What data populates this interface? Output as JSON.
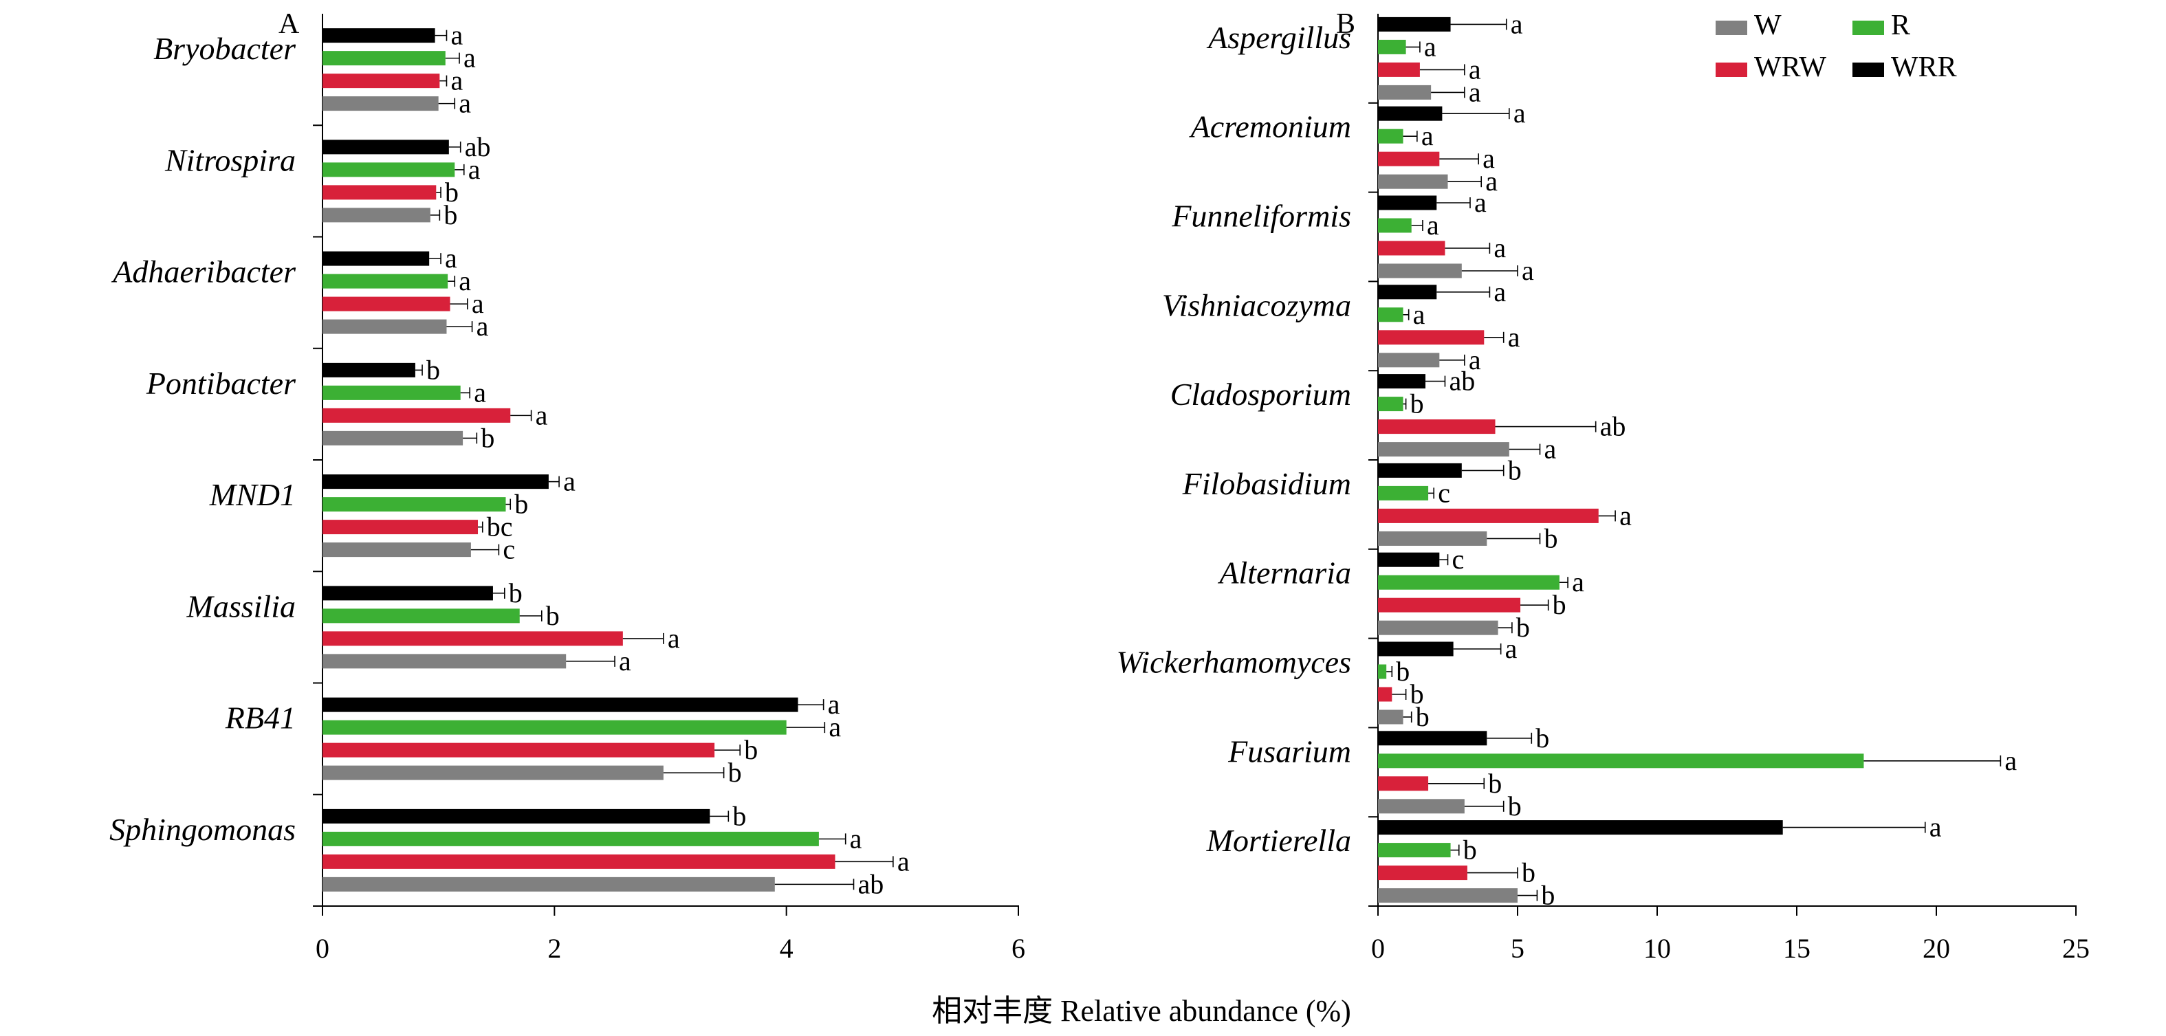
{
  "chart_data": {
    "type": "bar",
    "orientation": "horizontal",
    "xlabel": "相对丰度 Relative abundance (%)",
    "legend": {
      "placement": "top-right",
      "entries": [
        {
          "key": "W",
          "label": "W",
          "color": "#808080"
        },
        {
          "key": "R",
          "label": "R",
          "color": "#3cb034"
        },
        {
          "key": "WRW",
          "label": "WRW",
          "color": "#d8213a"
        },
        {
          "key": "WRR",
          "label": "WRR",
          "color": "#000000"
        }
      ]
    },
    "series_order": [
      "WRR",
      "R",
      "WRW",
      "W"
    ],
    "colors": {
      "W": "#808080",
      "R": "#3cb034",
      "WRW": "#d8213a",
      "WRR": "#000000"
    },
    "panels": [
      {
        "id": "A",
        "label": "A",
        "xlim": [
          0,
          6
        ],
        "xticks": [
          0,
          2,
          4,
          6
        ],
        "grid": false,
        "categories": [
          {
            "name": "Bryobacter",
            "values": {
              "WRR": 0.97,
              "R": 1.06,
              "WRW": 1.01,
              "W": 1.0
            },
            "errors": {
              "WRR": 0.1,
              "R": 0.12,
              "WRW": 0.06,
              "W": 0.14
            },
            "sig": {
              "WRR": "a",
              "R": "a",
              "WRW": "a",
              "W": "a"
            }
          },
          {
            "name": "Nitrospira",
            "values": {
              "WRR": 1.09,
              "R": 1.14,
              "WRW": 0.98,
              "W": 0.93
            },
            "errors": {
              "WRR": 0.1,
              "R": 0.08,
              "WRW": 0.04,
              "W": 0.08
            },
            "sig": {
              "WRR": "ab",
              "R": "a",
              "WRW": "b",
              "W": "b"
            }
          },
          {
            "name": "Adhaeribacter",
            "values": {
              "WRR": 0.92,
              "R": 1.08,
              "WRW": 1.1,
              "W": 1.07
            },
            "errors": {
              "WRR": 0.1,
              "R": 0.06,
              "WRW": 0.15,
              "W": 0.22
            },
            "sig": {
              "WRR": "a",
              "R": "a",
              "WRW": "a",
              "W": "a"
            }
          },
          {
            "name": "Pontibacter",
            "values": {
              "WRR": 0.8,
              "R": 1.19,
              "WRW": 1.62,
              "W": 1.21
            },
            "errors": {
              "WRR": 0.06,
              "R": 0.08,
              "WRW": 0.18,
              "W": 0.12
            },
            "sig": {
              "WRR": "b",
              "R": "a",
              "WRW": "a",
              "W": "b"
            }
          },
          {
            "name": "MND1",
            "values": {
              "WRR": 1.95,
              "R": 1.58,
              "WRW": 1.34,
              "W": 1.28
            },
            "errors": {
              "WRR": 0.09,
              "R": 0.04,
              "WRW": 0.04,
              "W": 0.24
            },
            "sig": {
              "WRR": "a",
              "R": "b",
              "WRW": "bc",
              "W": "c"
            }
          },
          {
            "name": "Massilia",
            "values": {
              "WRR": 1.47,
              "R": 1.7,
              "WRW": 2.59,
              "W": 2.1
            },
            "errors": {
              "WRR": 0.1,
              "R": 0.19,
              "WRW": 0.35,
              "W": 0.42
            },
            "sig": {
              "WRR": "b",
              "R": "b",
              "WRW": "a",
              "W": "a"
            }
          },
          {
            "name": "RB41",
            "values": {
              "WRR": 4.1,
              "R": 4.0,
              "WRW": 3.38,
              "W": 2.94
            },
            "errors": {
              "WRR": 0.22,
              "R": 0.33,
              "WRW": 0.22,
              "W": 0.52
            },
            "sig": {
              "WRR": "a",
              "R": "a",
              "WRW": "b",
              "W": "b"
            }
          },
          {
            "name": "Sphingomonas",
            "values": {
              "WRR": 3.34,
              "R": 4.28,
              "WRW": 4.42,
              "W": 3.9
            },
            "errors": {
              "WRR": 0.16,
              "R": 0.23,
              "WRW": 0.5,
              "W": 0.68
            },
            "sig": {
              "WRR": "b",
              "R": "a",
              "WRW": "a",
              "W": "ab"
            }
          }
        ]
      },
      {
        "id": "B",
        "label": "B",
        "xlim": [
          0,
          25
        ],
        "xticks": [
          0,
          5,
          10,
          15,
          20,
          25
        ],
        "grid": false,
        "categories": [
          {
            "name": "Aspergillus",
            "values": {
              "WRR": 2.6,
              "R": 1.0,
              "WRW": 1.5,
              "W": 1.9
            },
            "errors": {
              "WRR": 2.0,
              "R": 0.5,
              "WRW": 1.6,
              "W": 1.2
            },
            "sig": {
              "WRR": "a",
              "R": "a",
              "WRW": "a",
              "W": "a"
            }
          },
          {
            "name": "Acremonium",
            "values": {
              "WRR": 2.3,
              "R": 0.9,
              "WRW": 2.2,
              "W": 2.5
            },
            "errors": {
              "WRR": 2.4,
              "R": 0.5,
              "WRW": 1.4,
              "W": 1.2
            },
            "sig": {
              "WRR": "a",
              "R": "a",
              "WRW": "a",
              "W": "a"
            }
          },
          {
            "name": "Funneliformis",
            "values": {
              "WRR": 2.1,
              "R": 1.2,
              "WRW": 2.4,
              "W": 3.0
            },
            "errors": {
              "WRR": 1.2,
              "R": 0.4,
              "WRW": 1.6,
              "W": 2.0
            },
            "sig": {
              "WRR": "a",
              "R": "a",
              "WRW": "a",
              "W": "a"
            }
          },
          {
            "name": "Vishniacozyma",
            "values": {
              "WRR": 2.1,
              "R": 0.9,
              "WRW": 3.8,
              "W": 2.2
            },
            "errors": {
              "WRR": 1.9,
              "R": 0.2,
              "WRW": 0.7,
              "W": 0.9
            },
            "sig": {
              "WRR": "a",
              "R": "a",
              "WRW": "a",
              "W": "a"
            }
          },
          {
            "name": "Cladosporium",
            "values": {
              "WRR": 1.7,
              "R": 0.9,
              "WRW": 4.2,
              "W": 4.7
            },
            "errors": {
              "WRR": 0.7,
              "R": 0.1,
              "WRW": 3.6,
              "W": 1.1
            },
            "sig": {
              "WRR": "ab",
              "R": "b",
              "WRW": "ab",
              "W": "a"
            }
          },
          {
            "name": "Filobasidium",
            "values": {
              "WRR": 3.0,
              "R": 1.8,
              "WRW": 7.9,
              "W": 3.9
            },
            "errors": {
              "WRR": 1.5,
              "R": 0.2,
              "WRW": 0.6,
              "W": 1.9
            },
            "sig": {
              "WRR": "b",
              "R": "c",
              "WRW": "a",
              "W": "b"
            }
          },
          {
            "name": "Alternaria",
            "values": {
              "WRR": 2.2,
              "R": 6.5,
              "WRW": 5.1,
              "W": 4.3
            },
            "errors": {
              "WRR": 0.3,
              "R": 0.3,
              "WRW": 1.0,
              "W": 0.5
            },
            "sig": {
              "WRR": "c",
              "R": "a",
              "WRW": "b",
              "W": "b"
            }
          },
          {
            "name": "Wickerhamomyces",
            "values": {
              "WRR": 2.7,
              "R": 0.3,
              "WRW": 0.5,
              "W": 0.9
            },
            "errors": {
              "WRR": 1.7,
              "R": 0.2,
              "WRW": 0.5,
              "W": 0.3
            },
            "sig": {
              "WRR": "a",
              "R": "b",
              "WRW": "b",
              "W": "b"
            }
          },
          {
            "name": "Fusarium",
            "values": {
              "WRR": 3.9,
              "R": 17.4,
              "WRW": 1.8,
              "W": 3.1
            },
            "errors": {
              "WRR": 1.6,
              "R": 4.9,
              "WRW": 2.0,
              "W": 1.4
            },
            "sig": {
              "WRR": "b",
              "R": "a",
              "WRW": "b",
              "W": "b"
            }
          },
          {
            "name": "Mortierella",
            "values": {
              "WRR": 14.5,
              "R": 2.6,
              "WRW": 3.2,
              "W": 5.0
            },
            "errors": {
              "WRR": 5.1,
              "R": 0.3,
              "WRW": 1.8,
              "W": 0.7
            },
            "sig": {
              "WRR": "a",
              "R": "b",
              "WRW": "b",
              "W": "b"
            }
          }
        ]
      }
    ]
  }
}
